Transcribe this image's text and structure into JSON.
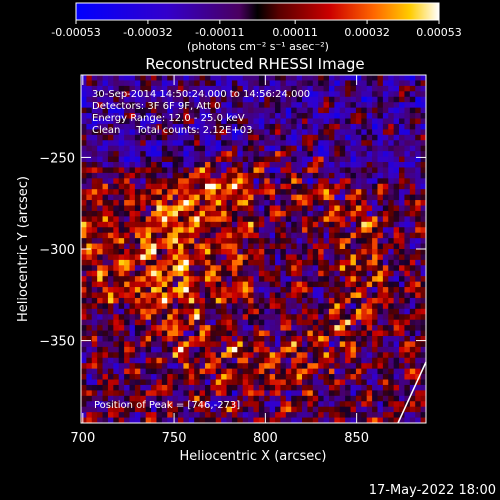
{
  "colorbar": {
    "ticks": [
      "-0.00053",
      "-0.00032",
      "-0.00011",
      "0.00011",
      "0.00032",
      "0.00053"
    ],
    "tick_values": [
      -0.00053,
      -0.00032,
      -0.00011,
      0.00011,
      0.00032,
      0.00053
    ],
    "unit_label": "(photons cm⁻² s⁻¹ asec⁻²)"
  },
  "chart_data": {
    "type": "heatmap",
    "title": "Reconstructed RHESSI Image",
    "xlabel": "Heliocentric X (arcsec)",
    "ylabel": "Heliocentric Y (arcsec)",
    "xlim": [
      699,
      888
    ],
    "ylim": [
      -395,
      -205
    ],
    "xticks": [
      700,
      750,
      800,
      850
    ],
    "yticks": [
      -350,
      -300,
      -250
    ],
    "value_range": [
      -0.00053,
      0.00053
    ],
    "peak": [
      746,
      -273
    ],
    "info": {
      "line1": "30-Sep-2014 14:50:24.000 to 14:56:24.000",
      "line2": "Detectors: 3F 6F 9F, Att 0",
      "line3": "Energy Range: 12.0 - 25.0 keV",
      "line4": "Clean     Total counts: 2.12E+03"
    },
    "peak_text": "Position of Peak = [746,-273]"
  },
  "footer": {
    "timestamp": "17-May-2022 18:00"
  }
}
